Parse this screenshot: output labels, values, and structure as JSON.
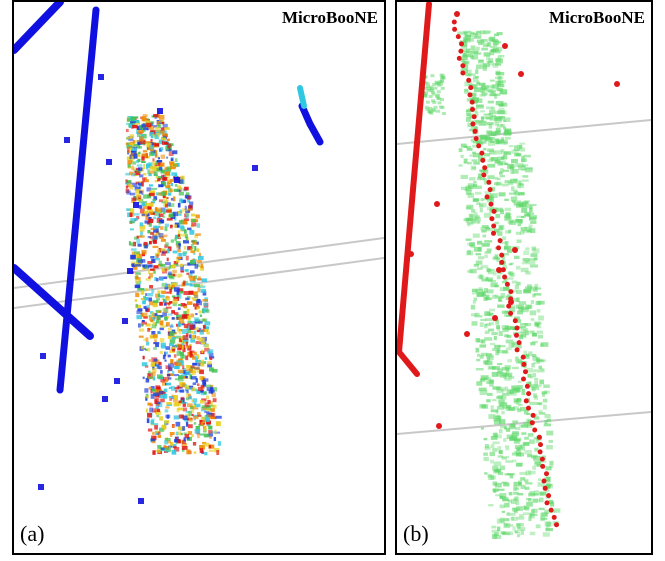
{
  "panels": [
    {
      "label": "(a)",
      "brand": "MicroBooNE",
      "colors": {
        "track": "#1010e0",
        "hits": [
          "#e01010",
          "#f08a00",
          "#e8d020",
          "#40c050",
          "#30c8e0",
          "#1a3cdc"
        ]
      }
    },
    {
      "label": "(b)",
      "brand": "MicroBooNE",
      "colors": {
        "track": "#e01a1a",
        "hits": [
          "#5fd86a"
        ]
      }
    }
  ]
}
